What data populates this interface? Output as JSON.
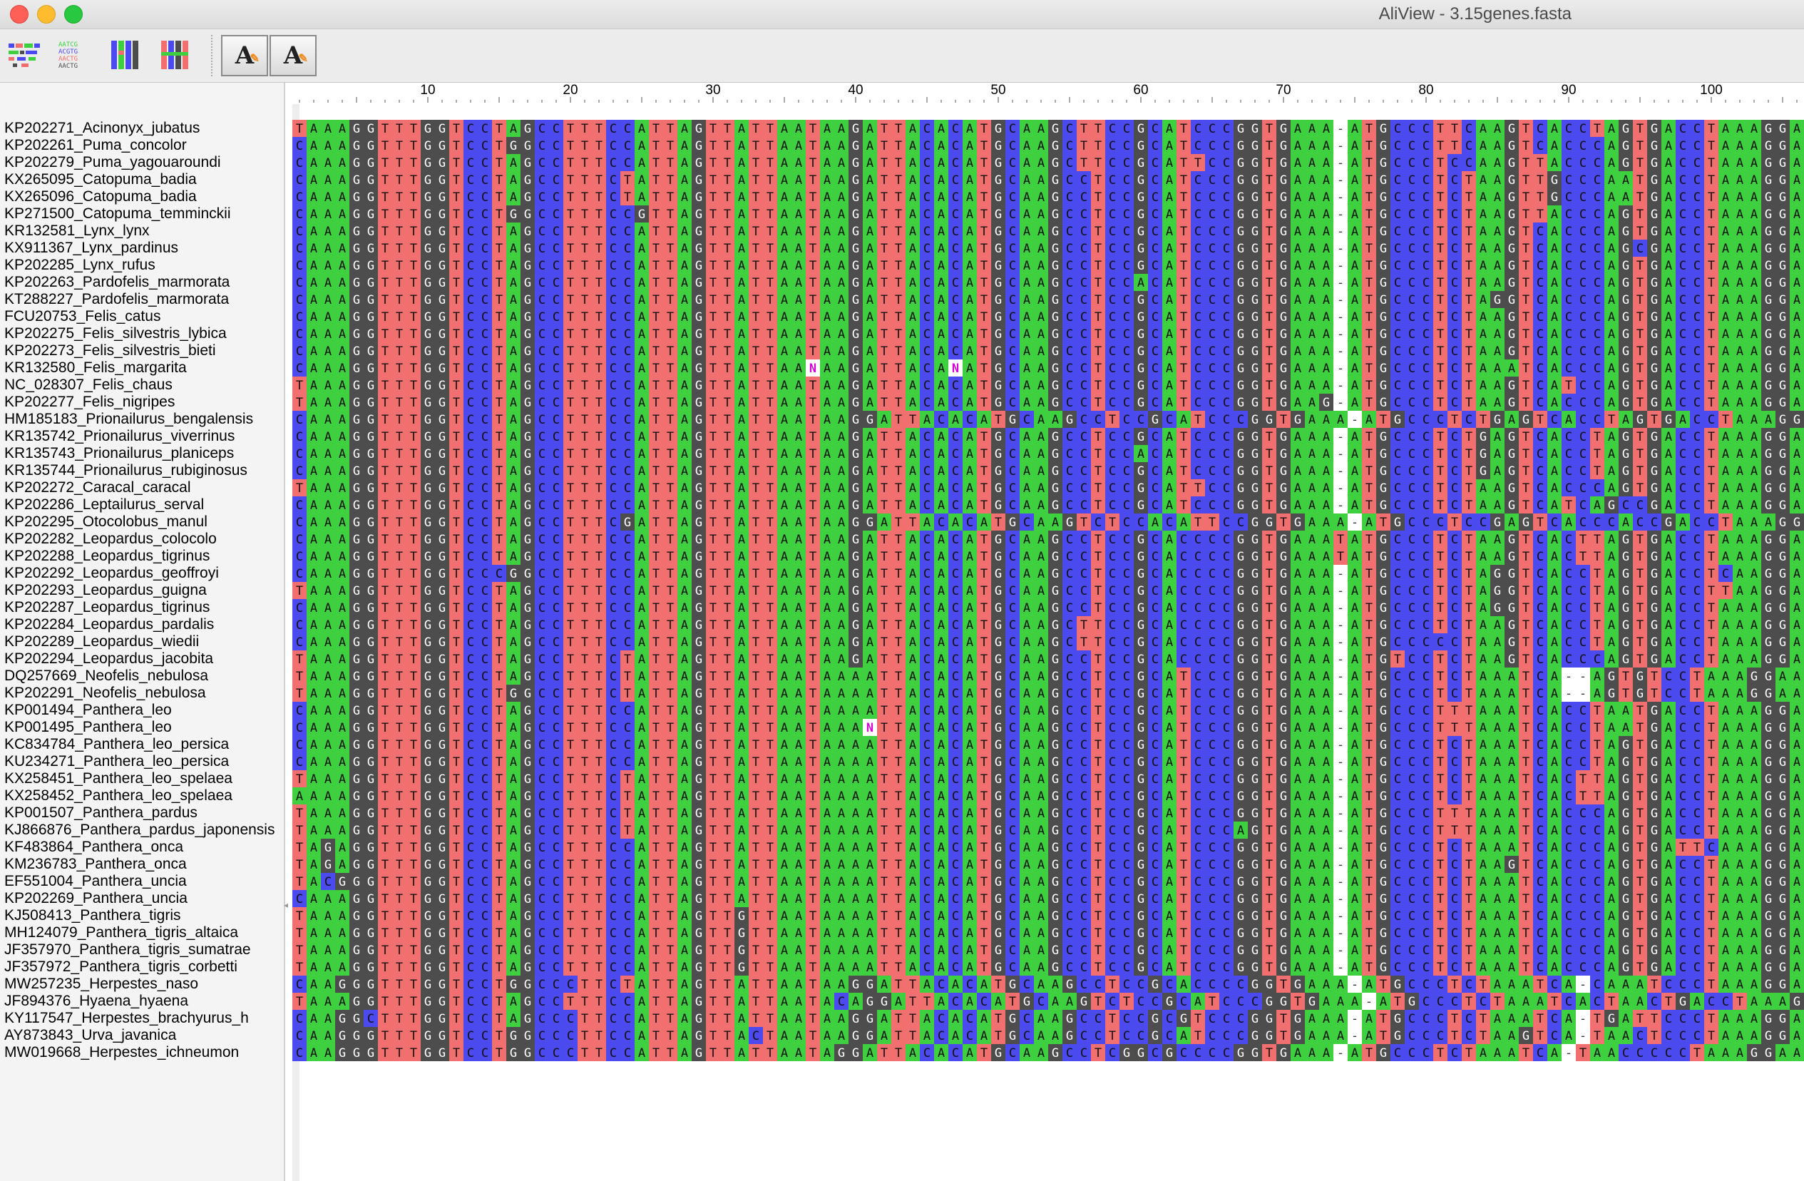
{
  "window": {
    "title": "AliView - 3.15genes.fasta"
  },
  "toolbar": {
    "icons": [
      "alignment-overview-icon",
      "text-alignment-icon",
      "color-columns-icon",
      "color-blocks-icon"
    ],
    "font_decrease_label": "A",
    "font_increase_label": "A"
  },
  "colors": {
    "A": "#3fd03f",
    "C": "#4a4aee",
    "G": "#4d4d4d",
    "T": "#f16f6f",
    "N": "#ffffff",
    "gap": "#ffffff",
    "N_text": "#d400d4"
  },
  "ruler": {
    "labels": [
      "10",
      "20",
      "30",
      "40",
      "50",
      "60",
      "70",
      "80",
      "90",
      "100"
    ],
    "positions": [
      10,
      20,
      30,
      40,
      50,
      60,
      70,
      80,
      90,
      100
    ]
  },
  "sequences": [
    {
      "name": "KP202271_Acinonyx_jubatus",
      "seq": "TAAAGGTTTGGTCCTAGCCTTTCCATTAGTTATTAATAAGATTACACATGCAAGCTTCCGCATCCCGGTGAAA-ATGCCCTTCAAGTCACCTAGTGACCTAAAGGAA"
    },
    {
      "name": "KP202261_Puma_concolor",
      "seq": "CAAAGGTTTGGTCCTGGCCTTTCCATTAGTTATTAATAAGATTACACATGCAAGCTTCCGCATCCCGGTGAAA-ATGCCCTTCAAGTCACCCAGTGACCTAAAGGAA"
    },
    {
      "name": "KP202279_Puma_yagouaroundi",
      "seq": "CAAAGGTTTGGTCCTAGCCTTTCCATTAGTTATTAATAAGATTACACATGCAAGCTTCCGCATTCCGGTGAAA-ATGCCCTCCAAGTTACCCAGTGACCTAAAGGAA"
    },
    {
      "name": "KX265095_Catopuma_badia",
      "seq": "CAAAGGTTTGGTCCTAGCCTTTCTATTAGTTATTAATAAGATTACACATGCAAGCCTCCGCATCCCGGTGAAA-ATGCCCTCTAAGTTGCCCAATGACCTAAAGGAA"
    },
    {
      "name": "KX265096_Catopuma_badia",
      "seq": "CAAAGGTTTGGTCCTAGCCTTTCTATTAGTTATTAATAAGATTACACATGCAAGCCTCCGCATCCCGGTGAAA-ATGCCCTCTAAGTTGCCCAATGACCTAAAGGAA"
    },
    {
      "name": "KP271500_Catopuma_temminckii",
      "seq": "CAAAGGTTTGGTCCTGGCCTTTCCGTTAGTTATTAATAAGATTACACATGCAAGCCTCCGCATCCCGGTGAAA-ATGCCCTCTAAGTTACCCAGTGACCTAAAGGAA"
    },
    {
      "name": "KR132581_Lynx_lynx",
      "seq": "CAAAGGTTTGGTCCTAGCCTTTCCATTAGTTATTAATAAGATTACACATGCAAGCCTCCGCATCCCGGTGAAA-ATGCCCTCTAAGTCACCCAGTGACCTAAAGGAA"
    },
    {
      "name": "KX911367_Lynx_pardinus",
      "seq": "CAAAGGTTTGGTCCTAGCCTTTCCATTAGTTATTAATAAGATTACACATGCAAGCCTCCGCATCCCGGTGAAA-ATGCCCTCTAAGTCACCCAGCGACCTAAAGGAA"
    },
    {
      "name": "KP202285_Lynx_rufus",
      "seq": "CAAAGGTTTGGTCCTAGCCTTTCCATTAGTTATTAATAAGATTACACATGCAAGCCTCCGCATCCCGGTGAAA-ATGCCCTCTAAGTCACCCAGTGACCTAAAGGAA"
    },
    {
      "name": "KP202263_Pardofelis_marmorata",
      "seq": "CAAAGGTTTGGTCCTAGCCTTTCCATTAGTTATTAATAAGATTACACATGCAAGCCTCCACATCCCGGTGAAA-ATGCCCTCTAAGTCACCCAGTGACCTAAAGGAA"
    },
    {
      "name": "KT288227_Pardofelis_marmorata",
      "seq": "CAAAGGTTTGGTCCTAGCCTTTCCATTAGTTATTAATAAGATTACACATGCAAGCCTCCGCATCCCGGTGAAA-ATGCCCTCTAGGTCACCCAGTGACCTAAAGGAA"
    },
    {
      "name": "FCU20753_Felis_catus",
      "seq": "CAAAGGTTTGGTCCTAGCCTTTCCATTAGTTATTAATAAGATTACACATGCAAGCCTCCGCATCCCGGTGAAA-ATGCCCTCTAAGTCACCCAGTGACCTAAAGGAA"
    },
    {
      "name": "KP202275_Felis_silvestris_lybica",
      "seq": "CAAAGGTTTGGTCCTAGCCTTTCCATTAGTTATTAATAAGATTACACATGCAAGCCTCCGCATCCCGGTGAAA-ATGCCCTCTAAGTCACCCAGTGACCTAAAGGAA"
    },
    {
      "name": "KP202273_Felis_silvestris_bieti",
      "seq": "CAAAGGTTTGGTCCTAGCCTTTCCATTAGTTATTAATAAGATTACACATGCAAGCCTCCGCATCCCGGTGAAA-ATGCCCTCTAAGTCACCCAGTGACCTAAAGGAA"
    },
    {
      "name": "KR132580_Felis_margarita",
      "seq": "CAAAGGTTTGGTCCTAGCCTTTCCATTAGTTATTAANAAGATTACANATGCAAGCCTCCGCATCCCGGTGAAA-ATGCCCTCTAAATCACCCAGTGACCTAAAGGAA"
    },
    {
      "name": "NC_028307_Felis_chaus",
      "seq": "TAAAGGTTTGGTCCTAGCCTTTCCATTAGTTATTAATAAGATTACACATGCAAGCCTCCGCATCCCGGTGAAA-ATGCCCTCTAAGTCATCCAGTGACCTAAAGGAA"
    },
    {
      "name": "KP202277_Felis_nigripes",
      "seq": "TAAAGGTTTGGTCCTAGCCTTTCCATTAGTTATTAATAAGATTACACATGCAAGCCTCCGCATCCCGGTGAAG-ATGCCCTCTAAGTCACCCAGTGACCTAAAGGAA"
    },
    {
      "name": "HM185183_Prionailurus_bengalensis",
      "seq": "CAAAGGTTTGGTCCTAGCCTTTCCATTAGTTATTAATAAGGATTACACATGCAAGCCTCCGCATCCCGGTGAAA-ATGCCCTCTGAGTCACCTAGTGACCTAAAGGAA"
    },
    {
      "name": "KR135742_Prionailurus_viverrinus",
      "seq": "CAAAGGTTTGGTCCTAGCCTTTCCATTAGTTATTAATAAGATTACACATGCAAGCCTCCGCATCCCGGTGAAA-ATGCCCTCTGAGTCACCTAGTGACCTAAAGGAA"
    },
    {
      "name": "KR135743_Prionailurus_planiceps",
      "seq": "CAAAGGTTTGGTCCTAGCCTTTCCATTAGTTATTAATAAGATTACACATGCAAGCCTCCACATCCCGGTGAAA-ATGCCCTCTGAGTCACCTAGTGACCTAAAGGAA"
    },
    {
      "name": "KR135744_Prionailurus_rubiginosus",
      "seq": "CAAAGGTTTGGTCCTAGCCTTTCCATTAGTTATTAATAAGATTACACATGCAAGCCTCCGCATCCCGGTGAAA-ATGCCCTCTGAGTCACCTAGTGACCTAAAGGAA"
    },
    {
      "name": "KP202272_Caracal_caracal",
      "seq": "TAAAGGTTTGGTCCTAGCCTTTCCATTAGTTATTAATAAGATTACACATGCAAGCCTCCGCATTCCGGTGAAA-ATGCCCTCTAAGTCACCCAGTGACCTAAAGGAA"
    },
    {
      "name": "KP202286_Leptailurus_serval",
      "seq": "CAAAGGTTTGGTCCTAGCCTTTCCATTAGTTATTAATAAGATTACACATGCAAGCCTCCGCATCCCGGTGAAA-ATGCCCTCTAAGTCATCAGCCGACCTAAAGGAA"
    },
    {
      "name": "KP202295_Otocolobus_manul",
      "seq": "CAAAGGTTTGGTCCTAGCCTTTCGATTAGTTATTAATAAGGATTACACATGCAAGTCTCCACATTCCGGTGAAA-ATGCCCTCCGAGTCACCCACCGACCTAAAGGAA"
    },
    {
      "name": "KP202282_Leopardus_colocolo",
      "seq": "CAAAGGTTTGGTCCTAGCCTTTCCATTAGTTATTAATAAGATTACACATGCAAGCCTCCGCACCCCGGTGAAATATGCCCTCTAAGTCACTTAGTGACCTAAAGGAA"
    },
    {
      "name": "KP202288_Leopardus_tigrinus",
      "seq": "CAAAGGTTTGGTCCTAGCCTTTCCATTAGTTATTAATAAGATTACACATGCAAGCCTCCGCACCCCGGTGAAATATGCCCTCTAAGTCACTTAGTGACCTAAAGGAA"
    },
    {
      "name": "KP202292_Leopardus_geoffroyi",
      "seq": "CAAAGGTTTGGTCCCGGCCTTTCCATTAGTTATTAATAAGATTACACATGCAAGCCTCCGCACCCCGGTGAAA-ATGCCCTCTAGGTCACCTAGTGACCTCAAGGAA"
    },
    {
      "name": "KP202293_Leopardus_guigna",
      "seq": "TAAAGGTTTGGTCCTAGCCTTTCCATTAGTTATTAATAAGATTACACATGCAAGCCTCCGCACCCCGGTGAAA-ATGCCCTCTAGGTCACCTAGTGACCTTAAGGAA"
    },
    {
      "name": "KP202287_Leopardus_tigrinus",
      "seq": "CAAAGGTTTGGTCCTAGCCTTTCCATTAGTTATTAATAAGATTACACATGCAAGCCTCCGCACCCCGGTGAAA-ATGCCCTCTAGGTCACCTAGTGACCTAAAGGAA"
    },
    {
      "name": "KP202284_Leopardus_pardalis",
      "seq": "CAAAGGTTTGGTCCTAGCCTTTCCATTAGTTATTAATAAGATTACACATGCAAGCTTCCGCACCCCGGTGAAA-ATGCCCTCTAAGTCACCTAGTGACCTAAAGGAA"
    },
    {
      "name": "KP202289_Leopardus_wiedii",
      "seq": "CAAAGGTTTGGTCCTAGCCTTTCCATTAGTTATTAATAAGATTACACATGCAAGCTTCCGCACCCCGGTGAAA-ATGCCCCCTAAGTCACCTAGTGACCTAAAGGAA"
    },
    {
      "name": "KP202294_Leopardus_jacobita",
      "seq": "TAAAGGTTTGGTCCTAGCCTTTCTATTAGTTATTAATAAGATTACACATGCAAGCCTCCGCACCCCGGTGAAA-ATGTCCTCTAAGTCACCCAGTGACCTAAAGGAA"
    },
    {
      "name": "DQ257669_Neofelis_nebulosa",
      "seq": "TAAAGGTTTGGTCCTAGCCTTTCTATTAGTTATTAATAAAATTACACATGCAAGCCTCCGCATCCCGGTGAAA-ATGCCCTCTAAATCA--AGTGTCCTAAAGGAA"
    },
    {
      "name": "KP202291_Neofelis_nebulosa",
      "seq": "TAAAGGTTTGGTCCTGGCCTTTCTATTAGTTATTAATAAAATTACACATGCAAGCCTCCGCATCCCGGTGAAA-ATGCCCTCTAAATCA--AGTGTCCTAAAGGAA"
    },
    {
      "name": "KP001494_Panthera_leo",
      "seq": "CAAAGGTTTGGTCCTAGCCTTTCCATTAGTTATTAATAAAATTACACATGCAAGCCTCCGCATCCCGGTGAAA-ATGCCCTTTAAATCACCTAATGACCTAAAGGAA"
    },
    {
      "name": "KP001495_Panthera_leo",
      "seq": "CAAAGGTTTGGTCCTAGCCTTTCCATTAGTTATTAATAAANTTACACATGCAAGCCTCCGCATCCCGGTGAAA-ATGCCCTTTAAATCACCTAATGACCTAAAGGAA"
    },
    {
      "name": "KC834784_Panthera_leo_persica",
      "seq": "CAAAGGTTTGGTCCTAGCCTTTCCATTAGTTATTAATAAAATTACACATGCAAGCCTCCGCATCCCGGTGAAA-ATGCCCTCTAAATCACCTAGTGACCTAAAGGAA"
    },
    {
      "name": "KU234271_Panthera_leo_persica",
      "seq": "CAAAGGTTTGGTCCTAGCCTTTCCATTAGTTATTAATAAAATTACACATGCAAGCCTCCGCATCCCGGTGAAA-ATGCCCTCTAAATCACCTAGTGACCTAAAGGAA"
    },
    {
      "name": "KX258451_Panthera_leo_spelaea",
      "seq": "TAAAGGTTTGGTCCTAGCCTTTCTATTAGTTATTAATAAAATTACACATGCAAGCCTCCGCATCCCGGTGAAA-ATGCCCTCTAAATCACTTAGTGACCTAAAGGAA"
    },
    {
      "name": "KX258452_Panthera_leo_spelaea",
      "seq": "AAAAGGTTTGGTCCTAGCCTTTCTATTAGTTATTAATAAAATTACACATGCAAGCCTCCGCATCCCGGTGAAA-ATGCCCTCTAAATCACTTAGTGACCTAAAGGAA"
    },
    {
      "name": "KP001507_Panthera_pardus",
      "seq": "TAAAGGTTTGGTCCTAGCCTTTCTATTAGTTATTAATAAAATTACACATGCAAGCCTCCGCATCCCGGTGAAA-ATGCCCTTTAAATCACCCAGTGACCTAAAGGAA"
    },
    {
      "name": "KJ866876_Panthera_pardus_japonensis",
      "seq": "TAAAGGTTTGGTCCTAGCCTTTCTATTAGTTATTAATAAAATTACACATGCAAGCCTCCGCATCCCAGTGAAA-ATGCCCTTTAAATCACCCAGTGACCTAAAGGAA"
    },
    {
      "name": "KF483864_Panthera_onca",
      "seq": "TAGAGGTTTGGTCCTAGCCTTTCCATTAGTTATTAATAAAATTACACATGCAAGCCTCCGCATCCCGGTGAAA-ATGCCCTCTAAATCACCCAGTGATTCAAAGGAA"
    },
    {
      "name": "KM236783_Panthera_onca",
      "seq": "TAGAGGTTTGGTCCTAGCCTTTCCATTAGTTATTAATAAAATTACACATGCAAGCCTCCGCATCCCGGTGAAA-ATGCCCTCTAAGTCACCCAGTGACCTAAAGGAA"
    },
    {
      "name": "EF551004_Panthera_uncia",
      "seq": "TACGGGTTTGGTCCTAGCCTTTCCATTAGTTATTAATAAAATTACACATGCAAGCCTCCGCATCCCGGTGAAA-ATGCCCTCTAAATCACCCAGTGACCTAAAGGAA"
    },
    {
      "name": "KP202269_Panthera_uncia",
      "seq": "CAAAGGTTTGGTCCTAGCCTTTCCATTAGTTATTAATAAAATTACACATGCAAGCCTCCGCATCCCGGTGAAA-ATGCCCTCTAAATCACCCAGTGACCTAAAGGAA"
    },
    {
      "name": "KJ508413_Panthera_tigris",
      "seq": "TAAAGGTTTGGTCCTAGCCTTTCCATTAGTTGTTAATAAAATTACACATGCAAGCCTCCGCATCCCGGTGAAA-ATGCCCTCTAAATCACCCAGTGACCTAAAGGAA"
    },
    {
      "name": "MH124079_Panthera_tigris_altaica",
      "seq": "TAAAGGTTTGGTCCTAGCCTTTCCATTAGTTGTTAATAAAATTACACATGCAAGCCTCCGCATCCCGGTGAAA-ATGCCCTCTAAATCACCCAGTGACCTAAAGGAA"
    },
    {
      "name": "JF357970_Panthera_tigris_sumatrae",
      "seq": "TAAAGGTTTGGTCCTAGCCTTTCCATTAGTTGTTAATAAAATTACACATGCAAGCCTCCGCATCCCGGTGAAA-ATGCCCTCTAAATCACCCAGTGACCTAAAGGAA"
    },
    {
      "name": "JF357972_Panthera_tigris_corbetti",
      "seq": "TAAAGGTTTGGTCCTAGCCTTTCCATTAGTTGTTAATAAAATTACACATGCAAGCCTCCGCATCCCGGTGAAA-ATGCCCTCTAAATCACCCAGTGACCTAAAGGAA"
    },
    {
      "name": "MW257235_Herpestes_naso",
      "seq": "CAAGGGTTTGGTCCTGGCCCTTCTATTAGTTATTAATAAGGATTACACATGCAAGCCTCCGCACCCCGGTGAAA-ATGCCCTCTAAATCA-CAAATCCCTAAAGGAA"
    },
    {
      "name": "JF894376_Hyaena_hyaena",
      "seq": "TAAAGGTTTGGTCCTAGCCTTTCCATTAGTTATTAATACAGGATTACACATGCAAGTCTCCGCATCCCGGTGAAA-ATGCCCTCTAAATCACTAACTGACCTAAAGGAA"
    },
    {
      "name": "KY117547_Herpestes_brachyurus_h",
      "seq": "CAAGGCTTTGGTCCTAGCCCTTCCATTAGTTATTAATAAGGATTACACATGCAAGCCTCCGCGTCCCGGTGAAA-ATGCCCTCTAAATCA-TGATTCCCTAAAGGAA"
    },
    {
      "name": "AY873843_Urva_javanica",
      "seq": "CAAGGGTTTGGTCCTGGCCCTTCCATTAGTTACTAATAAGGATTACACATGCAAGCCTCCGCATCCCGGTGAAA-ATGCCCTCTAAGTCA-TAACTCCCTAAAGGAA"
    },
    {
      "name": "MW019668_Herpestes_ichneumon",
      "seq": "CAAGGGTTTGGTCCTGGCCCTTCCATTAGTTATTAATAGGATTACACATGCAAGCCTCGGCGCCCCGGTGAAA-ATGCCCTCTAAATCA-TAACCCCCTAAAGGAA"
    }
  ]
}
